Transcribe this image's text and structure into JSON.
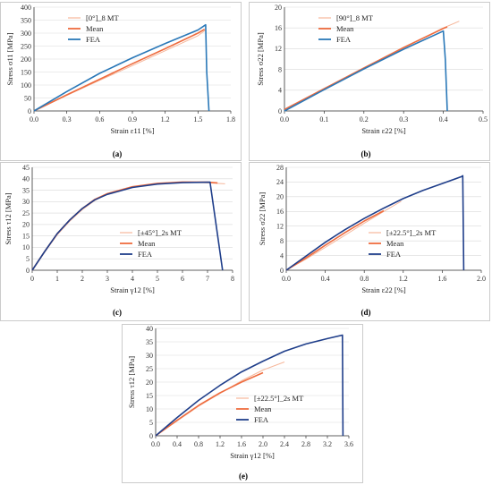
{
  "colors": {
    "mt": "#f6b79b",
    "mean": "#ee6c3f",
    "fea_a": "#2a78b8",
    "fea_c": "#1f3e8a"
  },
  "chart_data": [
    {
      "type": "line",
      "panel": "(a)",
      "xlabel": "Strain ε11 [%]",
      "ylabel": "Stress σ11 [MPa]",
      "xlim": [
        0,
        1.8
      ],
      "ylim": [
        0,
        400
      ],
      "xticks": [
        "0.0",
        "0.3",
        "0.6",
        "0.9",
        "1.2",
        "1.5",
        "1.8"
      ],
      "yticks": [
        "0",
        "50",
        "100",
        "150",
        "200",
        "250",
        "300",
        "350",
        "400"
      ],
      "legend": "top-left",
      "series": [
        {
          "name": "[0°]_8 MT",
          "style": "mt",
          "x": [
            0,
            0.3,
            0.6,
            0.9,
            1.2,
            1.5,
            1.57
          ],
          "y": [
            0,
            60,
            118,
            175,
            232,
            290,
            312
          ]
        },
        {
          "name": "Mean",
          "style": "mean",
          "x": [
            0,
            0.3,
            0.6,
            0.9,
            1.2,
            1.5,
            1.56
          ],
          "y": [
            0,
            62,
            122,
            182,
            240,
            300,
            315
          ]
        },
        {
          "name": "FEA",
          "style": "fea_a",
          "x": [
            0,
            0.3,
            0.6,
            0.9,
            1.2,
            1.5,
            1.57,
            1.58,
            1.6
          ],
          "y": [
            0,
            75,
            145,
            205,
            260,
            312,
            332,
            150,
            0
          ]
        }
      ]
    },
    {
      "type": "line",
      "panel": "(b)",
      "xlabel": "Strain ε22 [%]",
      "ylabel": "Stress σ22 [MPa]",
      "xlim": [
        0,
        0.5
      ],
      "ylim": [
        0,
        20
      ],
      "xticks": [
        "0.0",
        "0.1",
        "0.2",
        "0.3",
        "0.4",
        "0.5"
      ],
      "yticks": [
        "0",
        "4",
        "8",
        "12",
        "16",
        "20"
      ],
      "legend": "top-left",
      "series": [
        {
          "name": "[90°]_8 MT",
          "style": "mt",
          "x": [
            0,
            0.1,
            0.2,
            0.3,
            0.4,
            0.44
          ],
          "y": [
            0,
            4.2,
            8.3,
            12.3,
            16.0,
            17.3
          ]
        },
        {
          "name": "Mean",
          "style": "mean",
          "x": [
            0,
            0.1,
            0.2,
            0.3,
            0.4,
            0.41
          ],
          "y": [
            0.3,
            4.3,
            8.3,
            12.2,
            15.9,
            16.2
          ]
        },
        {
          "name": "FEA",
          "style": "fea_a",
          "x": [
            0,
            0.1,
            0.2,
            0.3,
            0.4,
            0.405,
            0.41
          ],
          "y": [
            0,
            4.1,
            8.1,
            11.9,
            15.4,
            10,
            0
          ]
        }
      ]
    },
    {
      "type": "line",
      "panel": "(c)",
      "xlabel": "Strain γ12 [%]",
      "ylabel": "Stress τ12 [MPa]",
      "xlim": [
        0,
        8
      ],
      "ylim": [
        0,
        45
      ],
      "xticks": [
        "0",
        "1",
        "2",
        "3",
        "4",
        "5",
        "6",
        "7",
        "8"
      ],
      "yticks": [
        "0",
        "5",
        "10",
        "15",
        "20",
        "25",
        "30",
        "35",
        "40",
        "45"
      ],
      "legend": "bottom-right",
      "series": [
        {
          "name": "[±45°]_2s MT",
          "style": "mt",
          "x": [
            0,
            0.5,
            1,
            1.5,
            2,
            2.5,
            3,
            4,
            5,
            6,
            7,
            7.7
          ],
          "y": [
            0,
            8,
            15.5,
            21.5,
            26.5,
            30.5,
            33.5,
            36.5,
            38,
            38.5,
            38.2,
            37.8
          ]
        },
        {
          "name": "Mean",
          "style": "mean",
          "x": [
            0,
            0.5,
            1,
            1.5,
            2,
            2.5,
            3,
            4,
            5,
            6,
            7,
            7.4
          ],
          "y": [
            0,
            8.2,
            16,
            22,
            27,
            31,
            33.5,
            36.5,
            38,
            38.6,
            38.5,
            38.2
          ]
        },
        {
          "name": "FEA",
          "style": "fea_c",
          "x": [
            0,
            0.5,
            1,
            1.5,
            2,
            2.5,
            3,
            4,
            5,
            6,
            7.1,
            7.6
          ],
          "y": [
            0,
            8.2,
            16,
            22,
            27,
            30.8,
            33.2,
            36.2,
            37.7,
            38.3,
            38.5,
            0
          ]
        }
      ]
    },
    {
      "type": "line",
      "panel": "(d)",
      "xlabel": "Strain ε22 [%]",
      "ylabel": "Stress σ22 [MPa]",
      "xlim": [
        0,
        2.0
      ],
      "ylim": [
        0,
        28
      ],
      "xticks": [
        "0.0",
        "0.4",
        "0.8",
        "1.2",
        "1.6",
        "2.0"
      ],
      "yticks": [
        "0",
        "4",
        "8",
        "12",
        "16",
        "20",
        "24",
        "28"
      ],
      "legend": "bottom-right",
      "series": [
        {
          "name": "[±22.5°]_2s MT",
          "style": "mt",
          "x": [
            0,
            0.2,
            0.4,
            0.6,
            0.8,
            1.0,
            1.18
          ],
          "y": [
            0,
            3,
            6.2,
            9.5,
            12.8,
            16,
            18.8
          ]
        },
        {
          "name": "Mean",
          "style": "mean",
          "x": [
            0,
            0.2,
            0.4,
            0.6,
            0.8,
            1.0
          ],
          "y": [
            0,
            3.3,
            6.8,
            10.2,
            13.4,
            16.2
          ]
        },
        {
          "name": "FEA",
          "style": "fea_c",
          "x": [
            0,
            0.2,
            0.4,
            0.6,
            0.8,
            1.0,
            1.2,
            1.4,
            1.6,
            1.8,
            1.81,
            1.82
          ],
          "y": [
            0,
            3.8,
            7.6,
            11,
            14.1,
            16.9,
            19.5,
            21.7,
            23.6,
            25.5,
            25.7,
            0
          ]
        }
      ]
    },
    {
      "type": "line",
      "panel": "(e)",
      "xlabel": "Strain γ12 [%]",
      "ylabel": "Stress τ12 [MPa]",
      "xlim": [
        0,
        3.6
      ],
      "ylim": [
        0,
        40
      ],
      "xticks": [
        "0.0",
        "0.4",
        "0.8",
        "1.2",
        "1.6",
        "2.0",
        "2.4",
        "2.8",
        "3.2",
        "3.6"
      ],
      "yticks": [
        "0",
        "5",
        "10",
        "15",
        "20",
        "25",
        "30",
        "35",
        "40"
      ],
      "legend": "bottom-right",
      "series": [
        {
          "name": "[±22.5°]_2s MT",
          "style": "mt",
          "x": [
            0,
            0.4,
            0.8,
            1.2,
            1.6,
            2.0,
            2.4
          ],
          "y": [
            0,
            5.5,
            11,
            15.8,
            20.5,
            24.5,
            27.5
          ]
        },
        {
          "name": "Mean",
          "style": "mean",
          "x": [
            0,
            0.4,
            0.8,
            1.2,
            1.6,
            2.0
          ],
          "y": [
            0,
            5.8,
            11.3,
            16,
            20,
            23.5
          ]
        },
        {
          "name": "FEA",
          "style": "fea_c",
          "x": [
            0,
            0.4,
            0.8,
            1.2,
            1.6,
            2.0,
            2.4,
            2.8,
            3.2,
            3.48,
            3.49
          ],
          "y": [
            0,
            6.8,
            13.2,
            18.8,
            23.8,
            27.8,
            31.5,
            34.2,
            36.2,
            37.5,
            0
          ]
        }
      ]
    }
  ]
}
